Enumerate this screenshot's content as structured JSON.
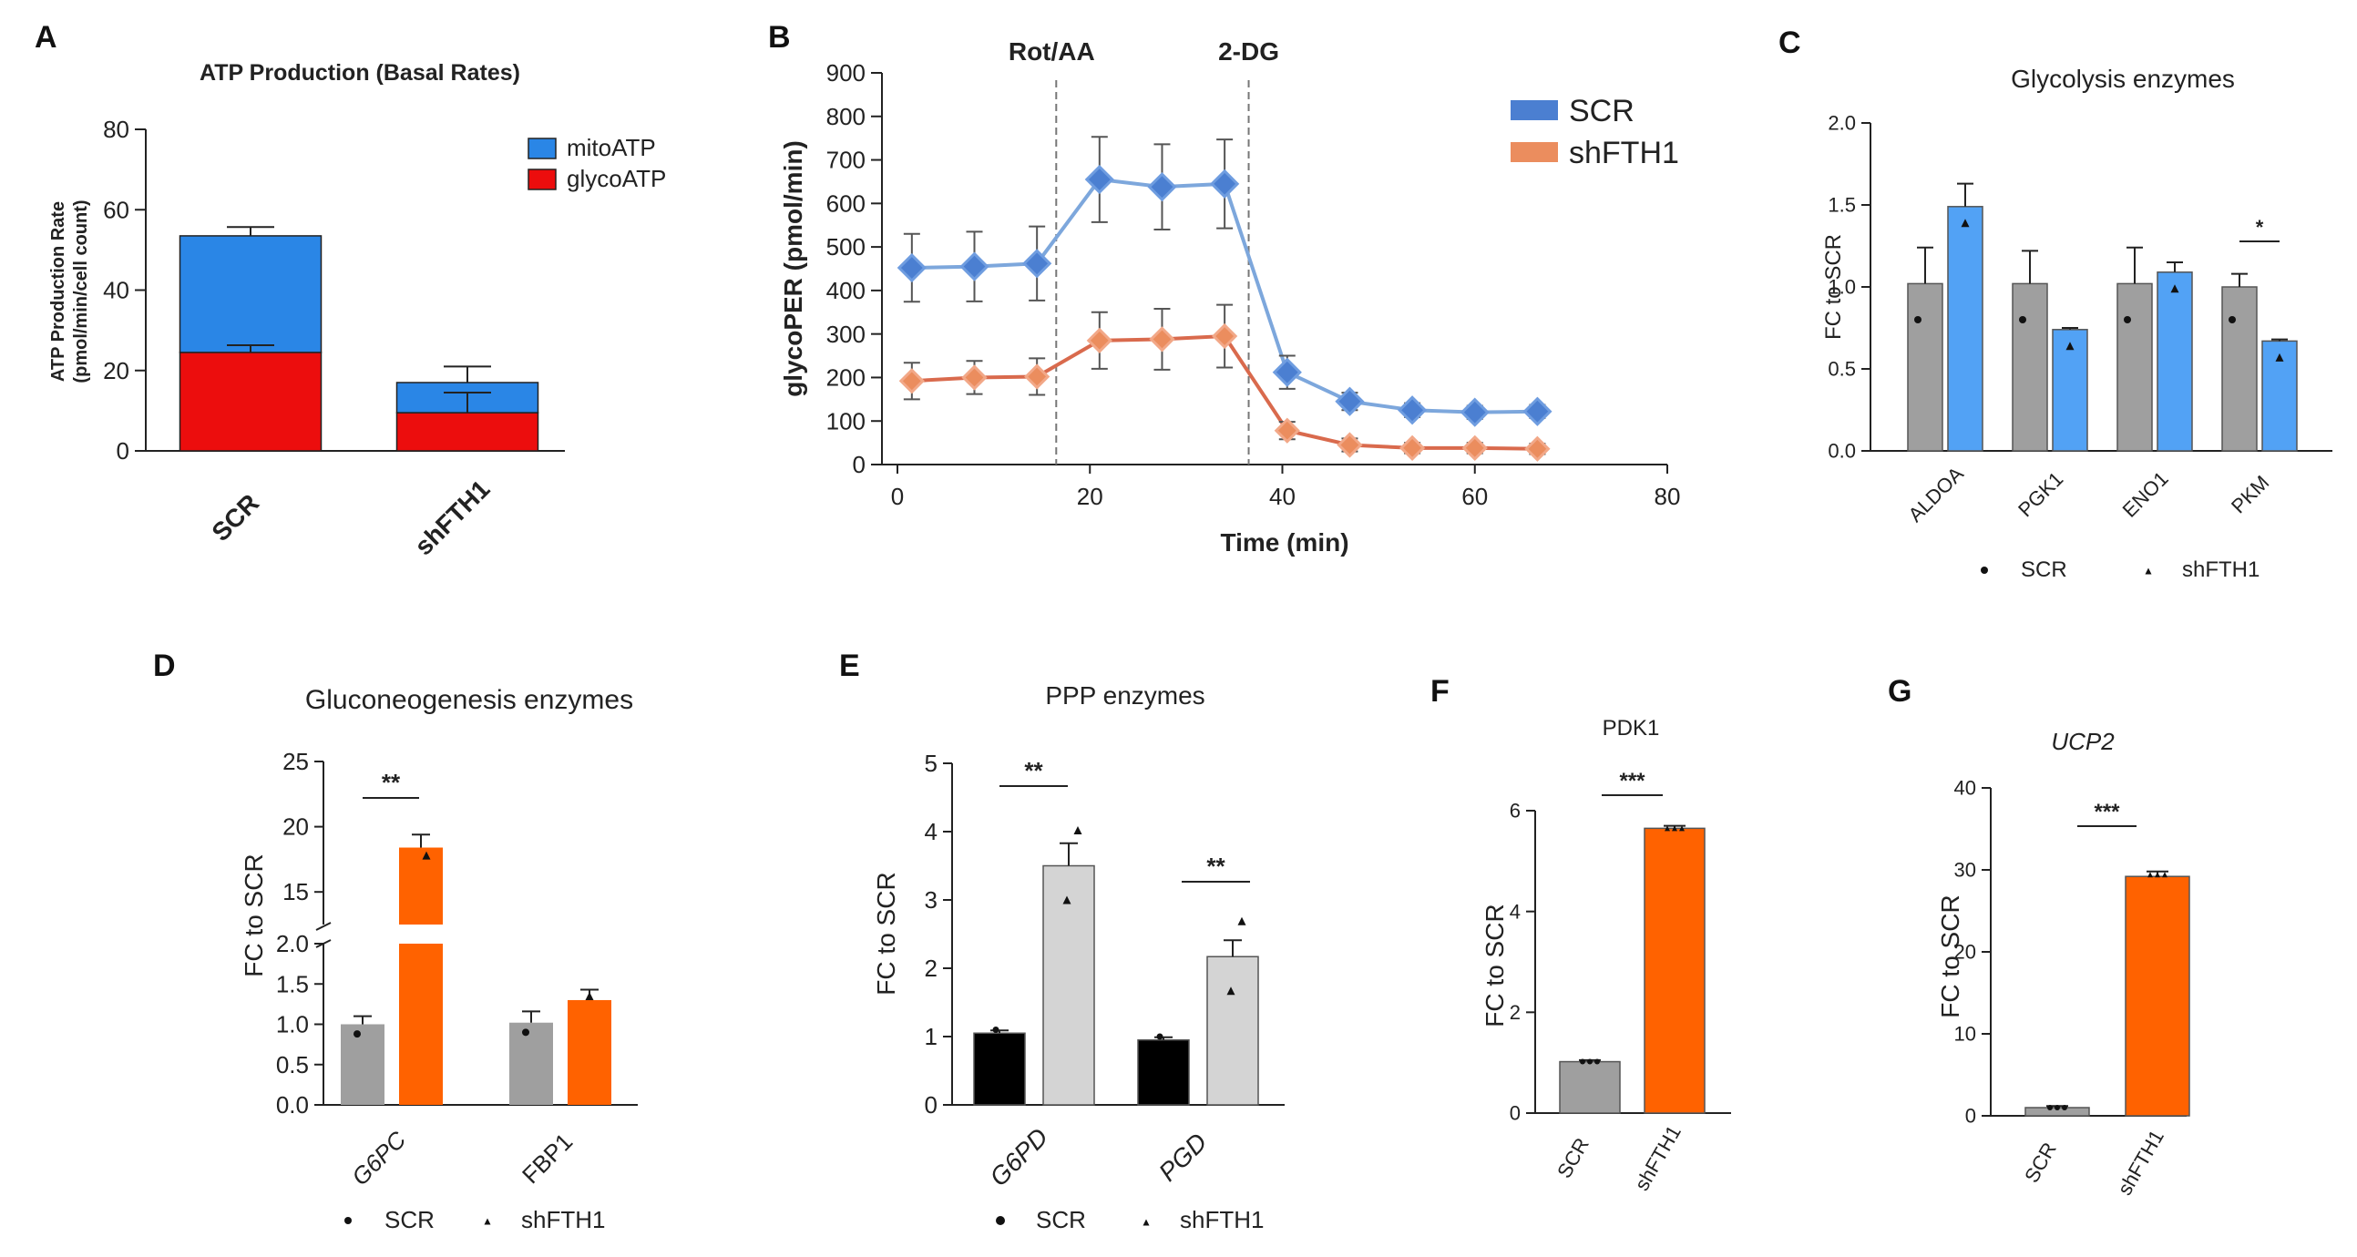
{
  "panel_letters": [
    "A",
    "B",
    "C",
    "D",
    "E",
    "F",
    "G"
  ],
  "colors": {
    "mito": "#2a86e6",
    "glyco": "#ec0d0d",
    "scr_line": "#7da7dc",
    "scr_marker": "#4b7fd1",
    "sh_line": "#d96a4d",
    "sh_marker": "#eb8d5e",
    "grey": "#9f9f9f",
    "blue": "#52a2f5",
    "orange": "#ff6200",
    "black": "#000000",
    "light": "#d4d4d4"
  },
  "chart_data": [
    {
      "id": "A",
      "type": "bar",
      "title": "ATP Production (Basal Rates)",
      "ylabel": "ATP Production Rate (pmol/min/cell count)",
      "ylabel_lines": [
        "ATP Production Rate",
        "(pmol/min/cell count)"
      ],
      "categories": [
        "SCR",
        "shFTH1"
      ],
      "ylim": [
        0,
        80
      ],
      "yticks": [
        "0",
        "20",
        "40",
        "60",
        "80"
      ],
      "series": [
        {
          "name": "glycoATP",
          "values": [
            24.5,
            9.5
          ],
          "errors": [
            1.8,
            5.0
          ]
        },
        {
          "name": "mitoATP",
          "values": [
            29,
            7.5
          ],
          "errors": [
            2.2,
            4.0
          ]
        }
      ],
      "legend": [
        "mitoATP",
        "glycoATP"
      ]
    },
    {
      "id": "B",
      "type": "line",
      "xlabel": "Time (min)",
      "ylabel": "glycoPER (pmol/min)",
      "xlim": [
        0,
        80
      ],
      "ylim": [
        0,
        900
      ],
      "xticks": [
        "0",
        "20",
        "40",
        "60",
        "80"
      ],
      "yticks": [
        "0",
        "100",
        "200",
        "300",
        "400",
        "500",
        "600",
        "700",
        "800",
        "900"
      ],
      "x": [
        1.5,
        8,
        14.5,
        21,
        27.5,
        34,
        40.5,
        47,
        53.5,
        60,
        66.5
      ],
      "series": [
        {
          "name": "SCR",
          "values": [
            452,
            455,
            462,
            655,
            638,
            645,
            212,
            145,
            125,
            120,
            122
          ],
          "errors": [
            78,
            80,
            85,
            98,
            98,
            102,
            38,
            20,
            16,
            15,
            15
          ]
        },
        {
          "name": "shFTH1",
          "values": [
            192,
            200,
            202,
            285,
            288,
            295,
            78,
            45,
            38,
            38,
            36
          ],
          "errors": [
            42,
            38,
            42,
            65,
            70,
            72,
            20,
            15,
            12,
            12,
            12
          ]
        }
      ],
      "annotations": [
        {
          "x": 16.5,
          "label": "Rot/AA"
        },
        {
          "x": 36.5,
          "label": "2-DG"
        }
      ]
    },
    {
      "id": "C",
      "type": "bar",
      "title": "Glycolysis enzymes",
      "ylabel": "FC to SCR",
      "categories": [
        "ALDOA",
        "PGK1",
        "ENO1",
        "PKM"
      ],
      "ylim": [
        0,
        2.0
      ],
      "yticks": [
        "0.0",
        "0.5",
        "1.0",
        "1.5",
        "2.0"
      ],
      "series": [
        {
          "name": "SCR",
          "values": [
            1.02,
            1.02,
            1.02,
            1.0
          ],
          "errors": [
            0.22,
            0.2,
            0.22,
            0.08
          ]
        },
        {
          "name": "shFTH1",
          "values": [
            1.49,
            0.74,
            1.09,
            0.67
          ],
          "errors": [
            0.14,
            0.01,
            0.06,
            0.01
          ]
        }
      ],
      "significance": [
        {
          "category": "PKM",
          "label": "*"
        }
      ],
      "legend": [
        "SCR",
        "shFTH1"
      ]
    },
    {
      "id": "D",
      "type": "bar",
      "title": "Gluconeogenesis enzymes",
      "ylabel": "FC to SCR",
      "categories": [
        "G6PC",
        "FBP1"
      ],
      "ylim_lower": [
        0,
        2.0
      ],
      "ylim_upper": [
        12.5,
        25
      ],
      "yticks_lower": [
        "0.0",
        "0.5",
        "1.0",
        "1.5",
        "2.0"
      ],
      "yticks_upper": [
        "15",
        "20",
        "25"
      ],
      "series": [
        {
          "name": "SCR",
          "values": [
            1.0,
            1.02
          ],
          "errors": [
            0.1,
            0.14
          ]
        },
        {
          "name": "shFTH1",
          "values": [
            18.4,
            1.3
          ],
          "errors": [
            1.0,
            0.13
          ]
        }
      ],
      "significance": [
        {
          "category": "G6PC",
          "label": "**"
        }
      ],
      "legend": [
        "SCR",
        "shFTH1"
      ]
    },
    {
      "id": "E",
      "type": "bar",
      "title": "PPP enzymes",
      "ylabel": "FC to SCR",
      "categories": [
        "G6PD",
        "PGD"
      ],
      "ylim": [
        0,
        5
      ],
      "yticks": [
        "0",
        "1",
        "2",
        "3",
        "4",
        "5"
      ],
      "series": [
        {
          "name": "SCR",
          "values": [
            1.05,
            0.95
          ],
          "errors": [
            0.04,
            0.04
          ]
        },
        {
          "name": "shFTH1",
          "values": [
            3.5,
            2.17
          ],
          "errors": [
            0.33,
            0.24
          ]
        }
      ],
      "significance": [
        {
          "category": "G6PD",
          "label": "**"
        },
        {
          "category": "PGD",
          "label": "**"
        }
      ],
      "legend": [
        "SCR",
        "shFTH1"
      ]
    },
    {
      "id": "F",
      "type": "bar",
      "title": "PDK1",
      "ylabel": "FC to SCR",
      "categories": [
        "SCR",
        "shFTH1"
      ],
      "ylim": [
        0,
        6
      ],
      "yticks": [
        "0",
        "2",
        "4",
        "6"
      ],
      "values": [
        1.02,
        5.65
      ],
      "errors": [
        0.03,
        0.05
      ],
      "significance": [
        {
          "label": "***"
        }
      ]
    },
    {
      "id": "G",
      "type": "bar",
      "title": "UCP2",
      "ylabel": "FC to SCR",
      "categories": [
        "SCR",
        "shFTH1"
      ],
      "ylim": [
        0,
        40
      ],
      "yticks": [
        "0",
        "10",
        "20",
        "30",
        "40"
      ],
      "values": [
        1.0,
        29.2
      ],
      "errors": [
        0.2,
        0.6
      ],
      "significance": [
        {
          "label": "***"
        }
      ]
    }
  ]
}
